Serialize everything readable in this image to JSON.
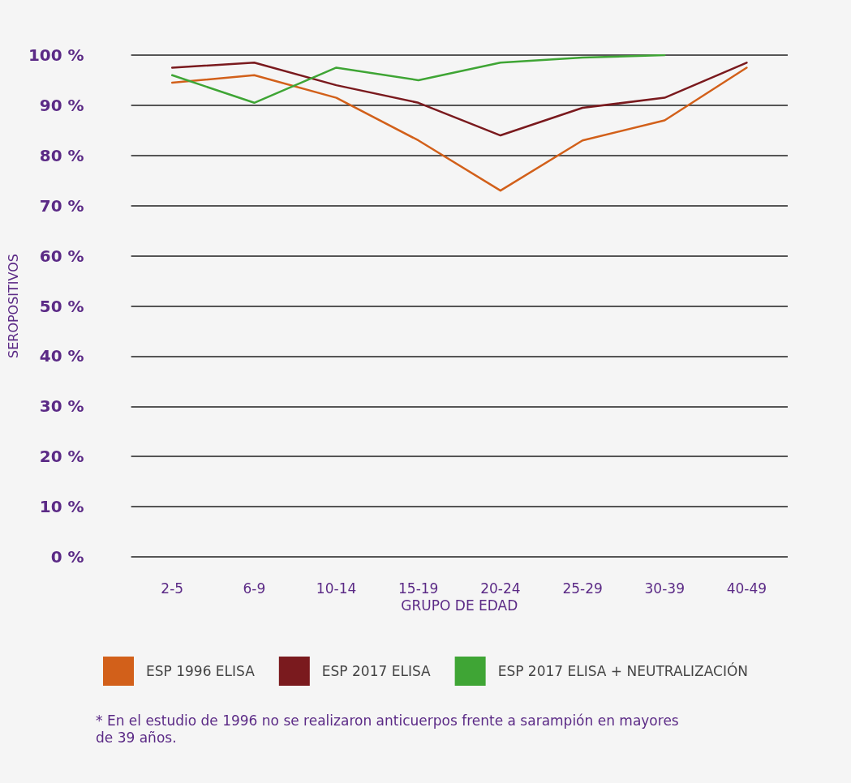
{
  "chart_data": {
    "type": "line",
    "xlabel": "GRUPO DE EDAD",
    "ylabel": "SEROPOSITIVOS",
    "categories": [
      "2-5",
      "6-9",
      "10-14",
      "15-19",
      "20-24",
      "25-29",
      "30-39",
      "40-49"
    ],
    "series": [
      {
        "name": "ESP 1996 ELISA",
        "color": "#d2601a",
        "values": [
          94.5,
          96,
          91.5,
          83,
          73,
          83,
          87,
          97.5
        ]
      },
      {
        "name": "ESP 2017 ELISA",
        "color": "#7a1a1e",
        "values": [
          97.5,
          98.5,
          94,
          90.5,
          84,
          89.5,
          91.5,
          98.5
        ]
      },
      {
        "name": "ESP 2017 ELISA + NEUTRALIZACIÓN",
        "color": "#3fa535",
        "values": [
          96,
          90.5,
          97.5,
          95,
          98.5,
          99.5,
          100,
          null
        ]
      }
    ],
    "ylim": [
      0,
      100
    ],
    "yticks": [
      {
        "value": 0,
        "label": "0 %"
      },
      {
        "value": 10,
        "label": "10 %"
      },
      {
        "value": 20,
        "label": "20 %"
      },
      {
        "value": 30,
        "label": "30 %"
      },
      {
        "value": 40,
        "label": "40 %"
      },
      {
        "value": 50,
        "label": "50 %"
      },
      {
        "value": 60,
        "label": "60 %"
      },
      {
        "value": 70,
        "label": "70 %"
      },
      {
        "value": 80,
        "label": "80 %"
      },
      {
        "value": 90,
        "label": "90 %"
      },
      {
        "value": 100,
        "label": "100 %"
      }
    ],
    "grid": "y",
    "legend": "bottom",
    "marker": "none",
    "line_style": "solid",
    "annotations": [
      "* En el estudio de 1996 no se realizaron anticuerpos frente a sarampión en mayores de 39 años."
    ]
  }
}
